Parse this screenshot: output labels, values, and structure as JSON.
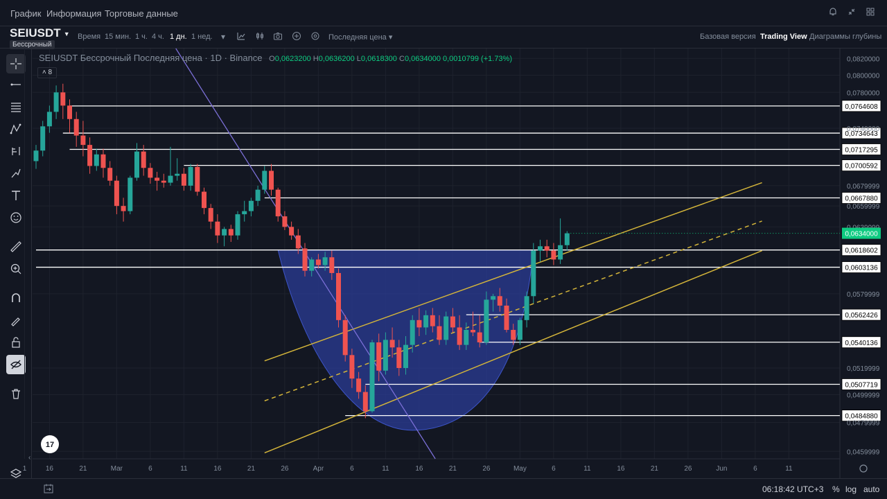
{
  "nav": {
    "tabs": [
      {
        "label": "График",
        "active": true
      },
      {
        "label": "Информация",
        "active": false
      },
      {
        "label": "Торговые данные",
        "active": false
      }
    ],
    "icons": [
      "bell-icon",
      "collapse-icon",
      "grid-icon",
      "settings-icon"
    ]
  },
  "toolbar": {
    "symbol": "SEIUSDT",
    "badge": "Бессрочный",
    "time_label": "Время",
    "intervals": [
      {
        "label": "15 мин.",
        "active": false
      },
      {
        "label": "1 ч.",
        "active": false
      },
      {
        "label": "4 ч.",
        "active": false
      },
      {
        "label": "1 дн.",
        "active": true
      },
      {
        "label": "1 нед.",
        "active": false
      }
    ],
    "price_source": "Последняя цена",
    "views": [
      {
        "label": "Базовая версия",
        "active": false
      },
      {
        "label": "Trading View",
        "active": true
      },
      {
        "label": "Диаграммы глубины",
        "active": false
      }
    ]
  },
  "legend": {
    "title": "SEIUSDT Бессрочный Последняя цена · 1D · Binance",
    "o_key": "O",
    "o": "0,0623200",
    "h_key": "H",
    "h": "0,0636200",
    "l_key": "L",
    "l": "0,0618300",
    "c_key": "C",
    "c": "0,0634000",
    "change": "0,0010799 (+1.73%)",
    "indicator_count": "8"
  },
  "bottom": {
    "time": "06:18:42 UTC+3",
    "percent": "%",
    "log": "log",
    "auto": "auto"
  },
  "colors": {
    "up": "#26a69a",
    "down": "#ef5350",
    "bg": "#131722",
    "channel": "#d4b53a",
    "trend": "#7b6fd6",
    "cup": "#2b3d9a",
    "current": "#0ecb81"
  },
  "chart_data": {
    "type": "candlestick",
    "symbol": "SEIUSDT",
    "interval": "1D",
    "y_scale": "log",
    "ylim": [
      0.0455,
      0.0832
    ],
    "y_ticks": [
      "0,0820000",
      "0,0800000",
      "0,0780000",
      "0,0740000",
      "0,0679999",
      "0,0659999",
      "0,0639999",
      "0,0579999",
      "0,0519999",
      "0,0499999",
      "0,0479999",
      "0,0459999"
    ],
    "x_ticks": [
      "1",
      "16",
      "21",
      "Mar",
      "6",
      "11",
      "16",
      "21",
      "26",
      "Apr",
      "6",
      "11",
      "16",
      "21",
      "26",
      "May",
      "6",
      "11",
      "16",
      "21",
      "26",
      "Jun",
      "6",
      "11"
    ],
    "x_ticks_at_candle": [
      -1.7,
      2,
      7,
      12,
      17,
      22,
      27,
      32,
      37,
      42,
      47,
      52,
      57,
      62,
      67,
      72,
      77,
      82,
      87,
      92,
      97,
      102,
      107,
      112
    ],
    "levels": [
      0.0764608,
      0.0734643,
      0.0717295,
      0.0700592,
      0.066788,
      0.0618602,
      0.0603136,
      0.0562426,
      0.0540136,
      0.0507719,
      0.048488
    ],
    "level_labels": [
      "0,0764608",
      "0,0734643",
      "0,0717295",
      "0,0700592",
      "0,0667880",
      "0,0618602",
      "0,0603136",
      "0,0562426",
      "0,0540136",
      "0,0507719",
      "0,0484880"
    ],
    "current_price": 0.0634,
    "current_price_label": "0,0634000",
    "candles": [
      [
        0.0705,
        0.0722,
        0.0697,
        0.0716
      ],
      [
        0.0716,
        0.0748,
        0.071,
        0.0742
      ],
      [
        0.0742,
        0.0765,
        0.0735,
        0.0758
      ],
      [
        0.0758,
        0.0788,
        0.075,
        0.078
      ],
      [
        0.078,
        0.079,
        0.075,
        0.0765
      ],
      [
        0.0765,
        0.0772,
        0.0735,
        0.075
      ],
      [
        0.075,
        0.0758,
        0.072,
        0.0732
      ],
      [
        0.0732,
        0.0748,
        0.071,
        0.0722
      ],
      [
        0.0722,
        0.073,
        0.0692,
        0.07
      ],
      [
        0.07,
        0.0718,
        0.0695,
        0.0712
      ],
      [
        0.0712,
        0.0718,
        0.0688,
        0.0698
      ],
      [
        0.0698,
        0.0705,
        0.068,
        0.0685
      ],
      [
        0.0685,
        0.069,
        0.0652,
        0.066
      ],
      [
        0.066,
        0.0668,
        0.0645,
        0.0655
      ],
      [
        0.0655,
        0.069,
        0.0652,
        0.0688
      ],
      [
        0.0688,
        0.0724,
        0.0685,
        0.0715
      ],
      [
        0.0715,
        0.0722,
        0.069,
        0.0698
      ],
      [
        0.0698,
        0.0703,
        0.0682,
        0.0688
      ],
      [
        0.0688,
        0.0694,
        0.0675,
        0.0685
      ],
      [
        0.0685,
        0.0692,
        0.0678,
        0.0683
      ],
      [
        0.0683,
        0.072,
        0.068,
        0.069
      ],
      [
        0.069,
        0.0708,
        0.0685,
        0.0692
      ],
      [
        0.0692,
        0.0698,
        0.0675,
        0.068
      ],
      [
        0.068,
        0.0702,
        0.0675,
        0.0699
      ],
      [
        0.0699,
        0.0702,
        0.067,
        0.0674
      ],
      [
        0.0674,
        0.0678,
        0.0652,
        0.0658
      ],
      [
        0.0658,
        0.0662,
        0.0638,
        0.0645
      ],
      [
        0.0645,
        0.0652,
        0.0625,
        0.0632
      ],
      [
        0.0632,
        0.064,
        0.0622,
        0.0638
      ],
      [
        0.0638,
        0.0642,
        0.0626,
        0.0632
      ],
      [
        0.0632,
        0.0655,
        0.0628,
        0.0652
      ],
      [
        0.0652,
        0.0665,
        0.0645,
        0.0655
      ],
      [
        0.0655,
        0.0668,
        0.065,
        0.0665
      ],
      [
        0.0665,
        0.068,
        0.066,
        0.0676
      ],
      [
        0.0676,
        0.07,
        0.0672,
        0.0695
      ],
      [
        0.0695,
        0.0702,
        0.067,
        0.0676
      ],
      [
        0.0676,
        0.0678,
        0.0645,
        0.065
      ],
      [
        0.065,
        0.0655,
        0.0637,
        0.064
      ],
      [
        0.064,
        0.0645,
        0.0628,
        0.0632
      ],
      [
        0.0632,
        0.0638,
        0.0615,
        0.062
      ],
      [
        0.062,
        0.0625,
        0.0595,
        0.06
      ],
      [
        0.06,
        0.0612,
        0.0595,
        0.061
      ],
      [
        0.061,
        0.0615,
        0.0602,
        0.0605
      ],
      [
        0.0605,
        0.0617,
        0.06,
        0.0612
      ],
      [
        0.0612,
        0.0618,
        0.0592,
        0.0598
      ],
      [
        0.0598,
        0.0602,
        0.0552,
        0.0558
      ],
      [
        0.0558,
        0.0562,
        0.0525,
        0.053
      ],
      [
        0.053,
        0.0535,
        0.0505,
        0.0512
      ],
      [
        0.0512,
        0.0517,
        0.0497,
        0.0502
      ],
      [
        0.0502,
        0.0507,
        0.0483,
        0.0488
      ],
      [
        0.0488,
        0.0542,
        0.0487,
        0.054
      ],
      [
        0.054,
        0.0547,
        0.051,
        0.0518
      ],
      [
        0.0518,
        0.0548,
        0.0515,
        0.0542
      ],
      [
        0.0542,
        0.0552,
        0.0528,
        0.0536
      ],
      [
        0.0536,
        0.0542,
        0.0514,
        0.052
      ],
      [
        0.052,
        0.0545,
        0.0515,
        0.0538
      ],
      [
        0.0538,
        0.0562,
        0.0532,
        0.0558
      ],
      [
        0.0558,
        0.0568,
        0.0545,
        0.0552
      ],
      [
        0.0552,
        0.0566,
        0.0546,
        0.0562
      ],
      [
        0.0562,
        0.0568,
        0.0548,
        0.0553
      ],
      [
        0.0553,
        0.0562,
        0.0538,
        0.0542
      ],
      [
        0.0542,
        0.0565,
        0.0538,
        0.0561
      ],
      [
        0.0561,
        0.0568,
        0.0548,
        0.0552
      ],
      [
        0.0552,
        0.0562,
        0.0534,
        0.0538
      ],
      [
        0.0538,
        0.0556,
        0.0534,
        0.055
      ],
      [
        0.055,
        0.0565,
        0.0545,
        0.0548
      ],
      [
        0.0548,
        0.0562,
        0.0536,
        0.054
      ],
      [
        0.054,
        0.0582,
        0.0538,
        0.0575
      ],
      [
        0.0575,
        0.058,
        0.0565,
        0.0578
      ],
      [
        0.0578,
        0.0585,
        0.0565,
        0.057
      ],
      [
        0.057,
        0.0576,
        0.0548,
        0.055
      ],
      [
        0.055,
        0.0555,
        0.0538,
        0.0542
      ],
      [
        0.0542,
        0.056,
        0.0538,
        0.0558
      ],
      [
        0.0558,
        0.0582,
        0.0552,
        0.0578
      ],
      [
        0.0578,
        0.0625,
        0.0572,
        0.0618
      ],
      [
        0.0618,
        0.0628,
        0.0608,
        0.0622
      ],
      [
        0.0622,
        0.0628,
        0.0612,
        0.0618
      ],
      [
        0.0618,
        0.0625,
        0.0605,
        0.061
      ],
      [
        0.061,
        0.0648,
        0.0606,
        0.0623
      ],
      [
        0.0623,
        0.0636,
        0.0618,
        0.0634
      ]
    ]
  }
}
